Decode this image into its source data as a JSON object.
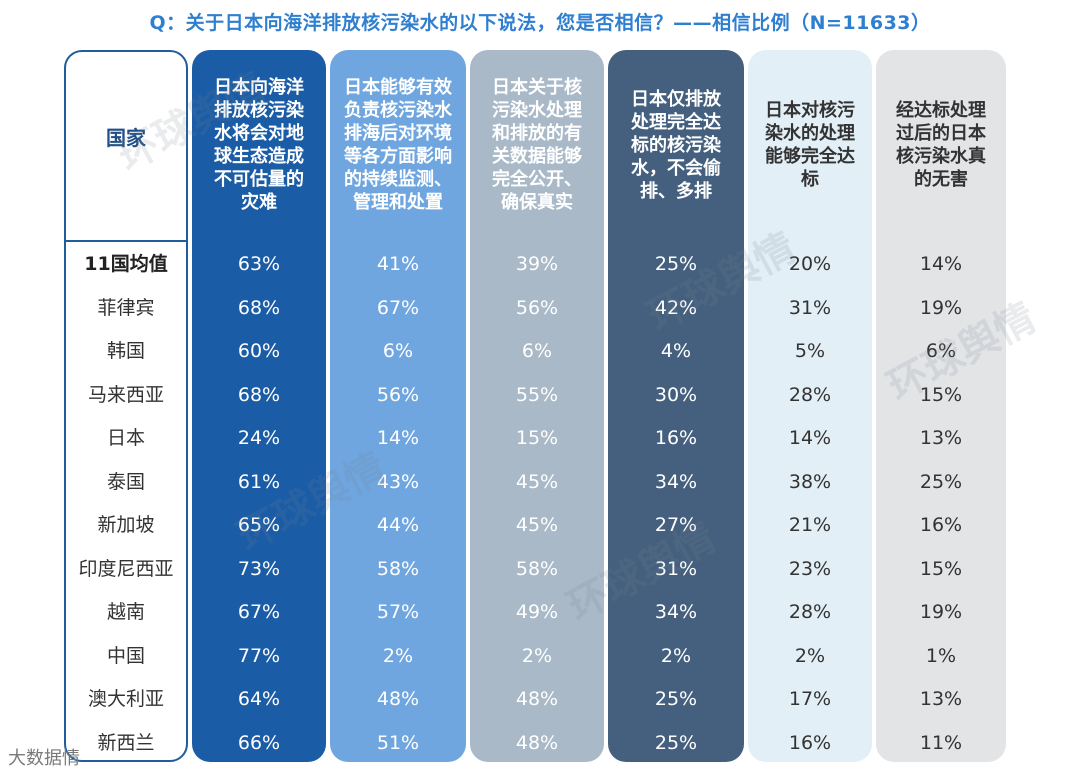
{
  "title": "Q：关于日本向海洋排放核污染水的以下说法，您是否相信？——相信比例（N=11633）",
  "footer": "大数据情",
  "watermark_text": "环球舆情",
  "chart_data": {
    "type": "table",
    "country_header": "国家",
    "categories": [
      "11国均值",
      "菲律宾",
      "韩国",
      "马来西亚",
      "日本",
      "泰国",
      "新加坡",
      "印度尼西亚",
      "越南",
      "中国",
      "澳大利亚",
      "新西兰"
    ],
    "series": [
      {
        "header_lines": [
          "日本向海洋",
          "排放核污染",
          "水将会对地",
          "球生态造成",
          "不可估量的",
          "灾难"
        ],
        "values": [
          "63%",
          "68%",
          "60%",
          "68%",
          "24%",
          "61%",
          "65%",
          "73%",
          "67%",
          "77%",
          "64%",
          "66%"
        ],
        "bg": "#1b5ca6",
        "fg": "#ffffff"
      },
      {
        "header_lines": [
          "日本能够有效",
          "负责核污染水",
          "排海后对环境",
          "等各方面影响",
          "的持续监测、",
          "管理和处置"
        ],
        "values": [
          "41%",
          "67%",
          "6%",
          "56%",
          "14%",
          "43%",
          "44%",
          "58%",
          "57%",
          "2%",
          "48%",
          "51%"
        ],
        "bg": "#6fa6df",
        "fg": "#ffffff"
      },
      {
        "header_lines": [
          "日本关于核",
          "污染水处理",
          "和排放的有",
          "关数据能够",
          "完全公开、",
          "确保真实"
        ],
        "values": [
          "39%",
          "56%",
          "6%",
          "55%",
          "15%",
          "45%",
          "45%",
          "58%",
          "49%",
          "2%",
          "48%",
          "48%"
        ],
        "bg": "#a9b9c8",
        "fg": "#ffffff"
      },
      {
        "header_lines": [
          "日本仅排放",
          "处理完全达",
          "标的核污染",
          "水，不会偷",
          "排、多排"
        ],
        "values": [
          "25%",
          "42%",
          "4%",
          "30%",
          "16%",
          "34%",
          "27%",
          "31%",
          "34%",
          "2%",
          "25%",
          "25%"
        ],
        "bg": "#45607e",
        "fg": "#ffffff"
      },
      {
        "header_lines": [
          "日本对核污",
          "染水的处理",
          "能够完全达",
          "标"
        ],
        "values": [
          "20%",
          "31%",
          "5%",
          "28%",
          "14%",
          "38%",
          "21%",
          "23%",
          "28%",
          "2%",
          "17%",
          "16%"
        ],
        "bg": "#e3eff6",
        "fg": "#333333"
      },
      {
        "header_lines": [
          "经达标处理",
          "过后的日本",
          "核污染水真",
          "的无害"
        ],
        "values": [
          "14%",
          "19%",
          "6%",
          "15%",
          "13%",
          "25%",
          "16%",
          "15%",
          "19%",
          "1%",
          "13%",
          "11%"
        ],
        "bg": "#e3e4e6",
        "fg": "#333333"
      }
    ]
  }
}
